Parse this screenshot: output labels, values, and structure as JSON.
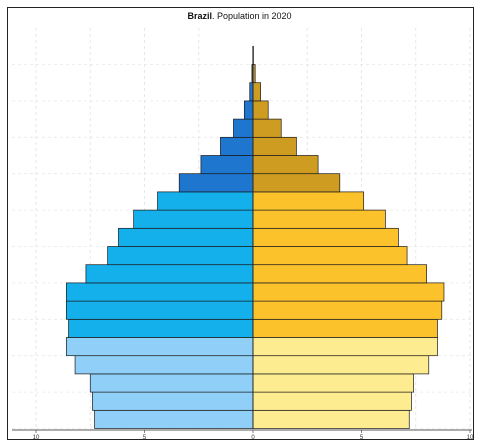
{
  "chart_data": {
    "type": "bar",
    "title_country": "Brazil",
    "title_rest": ". Population in 2020",
    "xlabel": "",
    "ylabel": "",
    "xlim": [
      -10,
      10
    ],
    "x_ticks": [
      "10",
      "5",
      "0",
      "5",
      "10"
    ],
    "grid": true,
    "legend": "none",
    "colors": {
      "male_child": "#90d0f8",
      "male_adult": "#14b0ec",
      "male_elderly": "#1f76cf",
      "female_child": "#fdec90",
      "female_adult": "#fbc22c",
      "female_elderly": "#cf9c22"
    },
    "rows": [
      {
        "male": 7.3,
        "female": 7.2,
        "group": "child"
      },
      {
        "male": 7.4,
        "female": 7.3,
        "group": "child"
      },
      {
        "male": 7.5,
        "female": 7.4,
        "group": "child"
      },
      {
        "male": 8.2,
        "female": 8.1,
        "group": "child"
      },
      {
        "male": 8.6,
        "female": 8.5,
        "group": "child"
      },
      {
        "male": 8.5,
        "female": 8.5,
        "group": "adult"
      },
      {
        "male": 8.6,
        "female": 8.7,
        "group": "adult"
      },
      {
        "male": 8.6,
        "female": 8.8,
        "group": "adult"
      },
      {
        "male": 7.7,
        "female": 8.0,
        "group": "adult"
      },
      {
        "male": 6.7,
        "female": 7.1,
        "group": "adult"
      },
      {
        "male": 6.2,
        "female": 6.7,
        "group": "adult"
      },
      {
        "male": 5.5,
        "female": 6.1,
        "group": "adult"
      },
      {
        "male": 4.4,
        "female": 5.1,
        "group": "adult"
      },
      {
        "male": 3.4,
        "female": 4.0,
        "group": "elderly"
      },
      {
        "male": 2.4,
        "female": 3.0,
        "group": "elderly"
      },
      {
        "male": 1.5,
        "female": 2.0,
        "group": "elderly"
      },
      {
        "male": 0.9,
        "female": 1.3,
        "group": "elderly"
      },
      {
        "male": 0.4,
        "female": 0.7,
        "group": "elderly"
      },
      {
        "male": 0.15,
        "female": 0.35,
        "group": "elderly"
      },
      {
        "male": 0.05,
        "female": 0.1,
        "group": "elderly"
      },
      {
        "male": 0.01,
        "female": 0.02,
        "group": "elderly"
      }
    ]
  }
}
